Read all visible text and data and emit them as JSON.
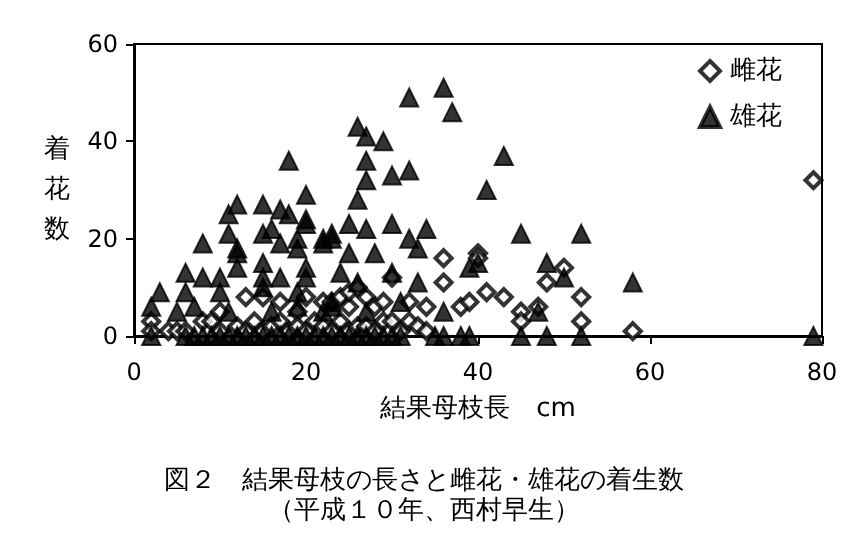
{
  "chart_data": {
    "type": "scatter",
    "title": "図２　結果母枝の長さと雌花・雄花の着生数",
    "subtitle": "（平成１０年、西村早生）",
    "xlabel": "結果母枝長　cm",
    "ylabel": "着花数",
    "xlim": [
      0,
      80
    ],
    "xticks": [
      0,
      20,
      40,
      60,
      80
    ],
    "ylim": [
      0,
      60
    ],
    "yticks": [
      0,
      20,
      40,
      60
    ],
    "grid": false,
    "legend": "top right",
    "series": [
      {
        "name": "雌花",
        "color": "#000000",
        "marker": "diamond",
        "x": [
          2,
          2,
          4,
          5,
          6,
          8,
          9,
          10,
          13,
          15,
          17,
          19,
          20,
          22,
          23,
          24,
          25,
          10,
          12,
          13,
          14,
          15,
          16,
          17,
          18,
          19,
          20,
          21,
          22,
          23,
          24,
          25,
          26,
          25,
          26,
          27,
          28,
          29,
          30,
          32,
          34,
          36,
          36,
          38,
          39,
          40,
          40,
          41,
          43,
          45,
          45,
          47,
          48,
          50,
          52,
          52,
          58,
          79,
          27,
          28,
          29,
          30,
          31,
          32,
          33,
          34
        ],
        "values": [
          3,
          1,
          1,
          1,
          1,
          3,
          3,
          5,
          8,
          8,
          7,
          5,
          8,
          7,
          7,
          8,
          6,
          1,
          2,
          1,
          3,
          1,
          2,
          3,
          1,
          2,
          1,
          3,
          2,
          1,
          3,
          1,
          2,
          9,
          10,
          8,
          6,
          7,
          12,
          7,
          6,
          16,
          11,
          6,
          7,
          17,
          16,
          9,
          8,
          5,
          3,
          6,
          11,
          14,
          8,
          3,
          1,
          32,
          2,
          1,
          3,
          3,
          1,
          3,
          2,
          1
        ]
      },
      {
        "name": "雄花",
        "color": "#000000",
        "marker": "triangle",
        "x": [
          36,
          32,
          37,
          26,
          27,
          29,
          27,
          27,
          30,
          32,
          26,
          43,
          41,
          25,
          27,
          30,
          34,
          23,
          22,
          32,
          25,
          28,
          33,
          45,
          52,
          24,
          30,
          26,
          33,
          39,
          40,
          48,
          50,
          23,
          27,
          31,
          36,
          47,
          3,
          2,
          5,
          6,
          6,
          7,
          8,
          10,
          8,
          11,
          11,
          12,
          12,
          12,
          12,
          10,
          11,
          15,
          17,
          18,
          16,
          15,
          17,
          15,
          15,
          17,
          18,
          20,
          20,
          20,
          19,
          19,
          22,
          23,
          20,
          20,
          19,
          19,
          22,
          23,
          15,
          16,
          58,
          2,
          6,
          7,
          8,
          9,
          10,
          11,
          12,
          13,
          14,
          15,
          16,
          17,
          18,
          19,
          20,
          21,
          22,
          23,
          24,
          25,
          26,
          27,
          28,
          29,
          30,
          31,
          35,
          36,
          38,
          39,
          45,
          48,
          52,
          79
        ],
        "values": [
          51,
          49,
          46,
          43,
          41,
          40,
          36,
          32,
          33,
          34,
          28,
          37,
          30,
          23,
          22,
          23,
          22,
          21,
          19,
          20,
          17,
          17,
          18,
          21,
          21,
          13,
          13,
          11,
          11,
          14,
          15,
          15,
          12,
          7,
          5,
          7,
          5,
          5,
          9,
          6,
          5,
          9,
          13,
          6,
          12,
          12,
          19,
          21,
          25,
          27,
          18,
          17,
          14,
          9,
          5,
          27,
          26,
          25,
          22,
          21,
          19,
          15,
          12,
          12,
          36,
          29,
          24,
          23,
          20,
          18,
          20,
          20,
          14,
          12,
          9,
          6,
          5,
          6,
          10,
          5,
          11,
          0,
          0,
          0,
          0,
          0,
          0,
          0,
          0,
          0,
          0,
          0,
          0,
          0,
          0,
          0,
          0,
          0,
          0,
          0,
          0,
          0,
          0,
          0,
          0,
          0,
          0,
          0,
          0,
          0,
          0,
          0,
          0,
          0,
          0,
          0
        ]
      }
    ]
  }
}
